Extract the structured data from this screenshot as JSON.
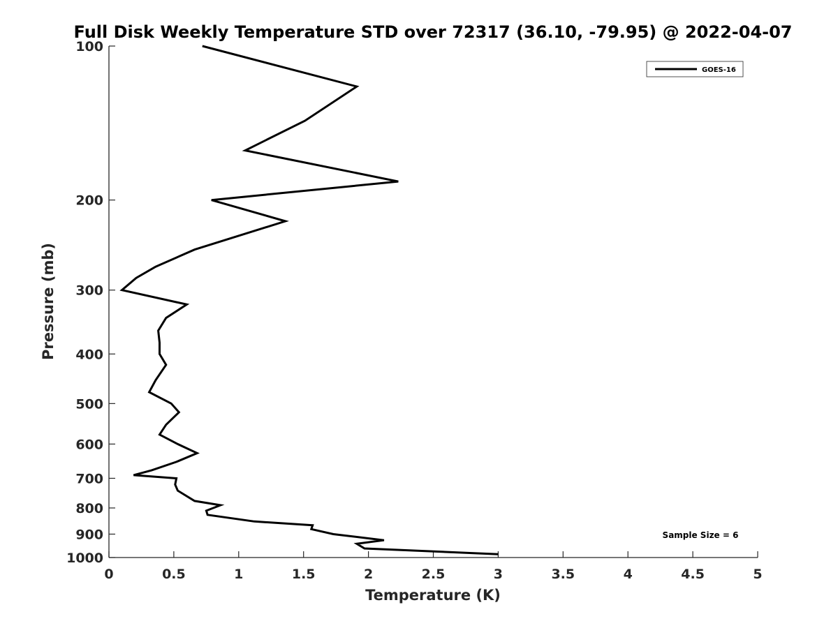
{
  "chart_data": {
    "type": "line",
    "title": "Full Disk Weekly Temperature STD over 72317 (36.10, -79.95) @ 2022-04-07",
    "xlabel": "Temperature (K)",
    "ylabel": "Pressure (mb)",
    "xlim": [
      0,
      5
    ],
    "ylim": [
      100,
      1000
    ],
    "y_scale": "log",
    "y_reversed": true,
    "x_ticks": [
      "0",
      "0.5",
      "1",
      "1.5",
      "2",
      "2.5",
      "3",
      "3.5",
      "4",
      "4.5",
      "5"
    ],
    "y_ticks": [
      "100",
      "200",
      "300",
      "400",
      "500",
      "600",
      "700",
      "800",
      "900",
      "1000"
    ],
    "grid": false,
    "legend_position": "top-right",
    "series": [
      {
        "name": "GOES-16",
        "color": "#000000",
        "x": [
          0.72,
          1.91,
          1.51,
          1.05,
          2.23,
          0.79,
          1.36,
          0.66,
          0.36,
          0.21,
          0.1,
          0.6,
          0.44,
          0.38,
          0.39,
          0.39,
          0.44,
          0.36,
          0.31,
          0.48,
          0.54,
          0.44,
          0.39,
          0.53,
          0.68,
          0.52,
          0.33,
          0.19,
          0.52,
          0.51,
          0.53,
          0.66,
          0.86,
          0.75,
          0.76,
          1.12,
          1.57,
          1.56,
          1.73,
          2.12,
          1.91,
          1.97,
          3.0
        ],
        "y": [
          100,
          120,
          140,
          160,
          184,
          200,
          220,
          250,
          270,
          284,
          300,
          320,
          340,
          360,
          380,
          400,
          420,
          450,
          475,
          500,
          520,
          550,
          575,
          600,
          625,
          650,
          675,
          690,
          700,
          720,
          740,
          775,
          790,
          810,
          825,
          850,
          865,
          880,
          900,
          925,
          940,
          960,
          985
        ]
      }
    ],
    "annotation": "Sample Size = 6"
  }
}
